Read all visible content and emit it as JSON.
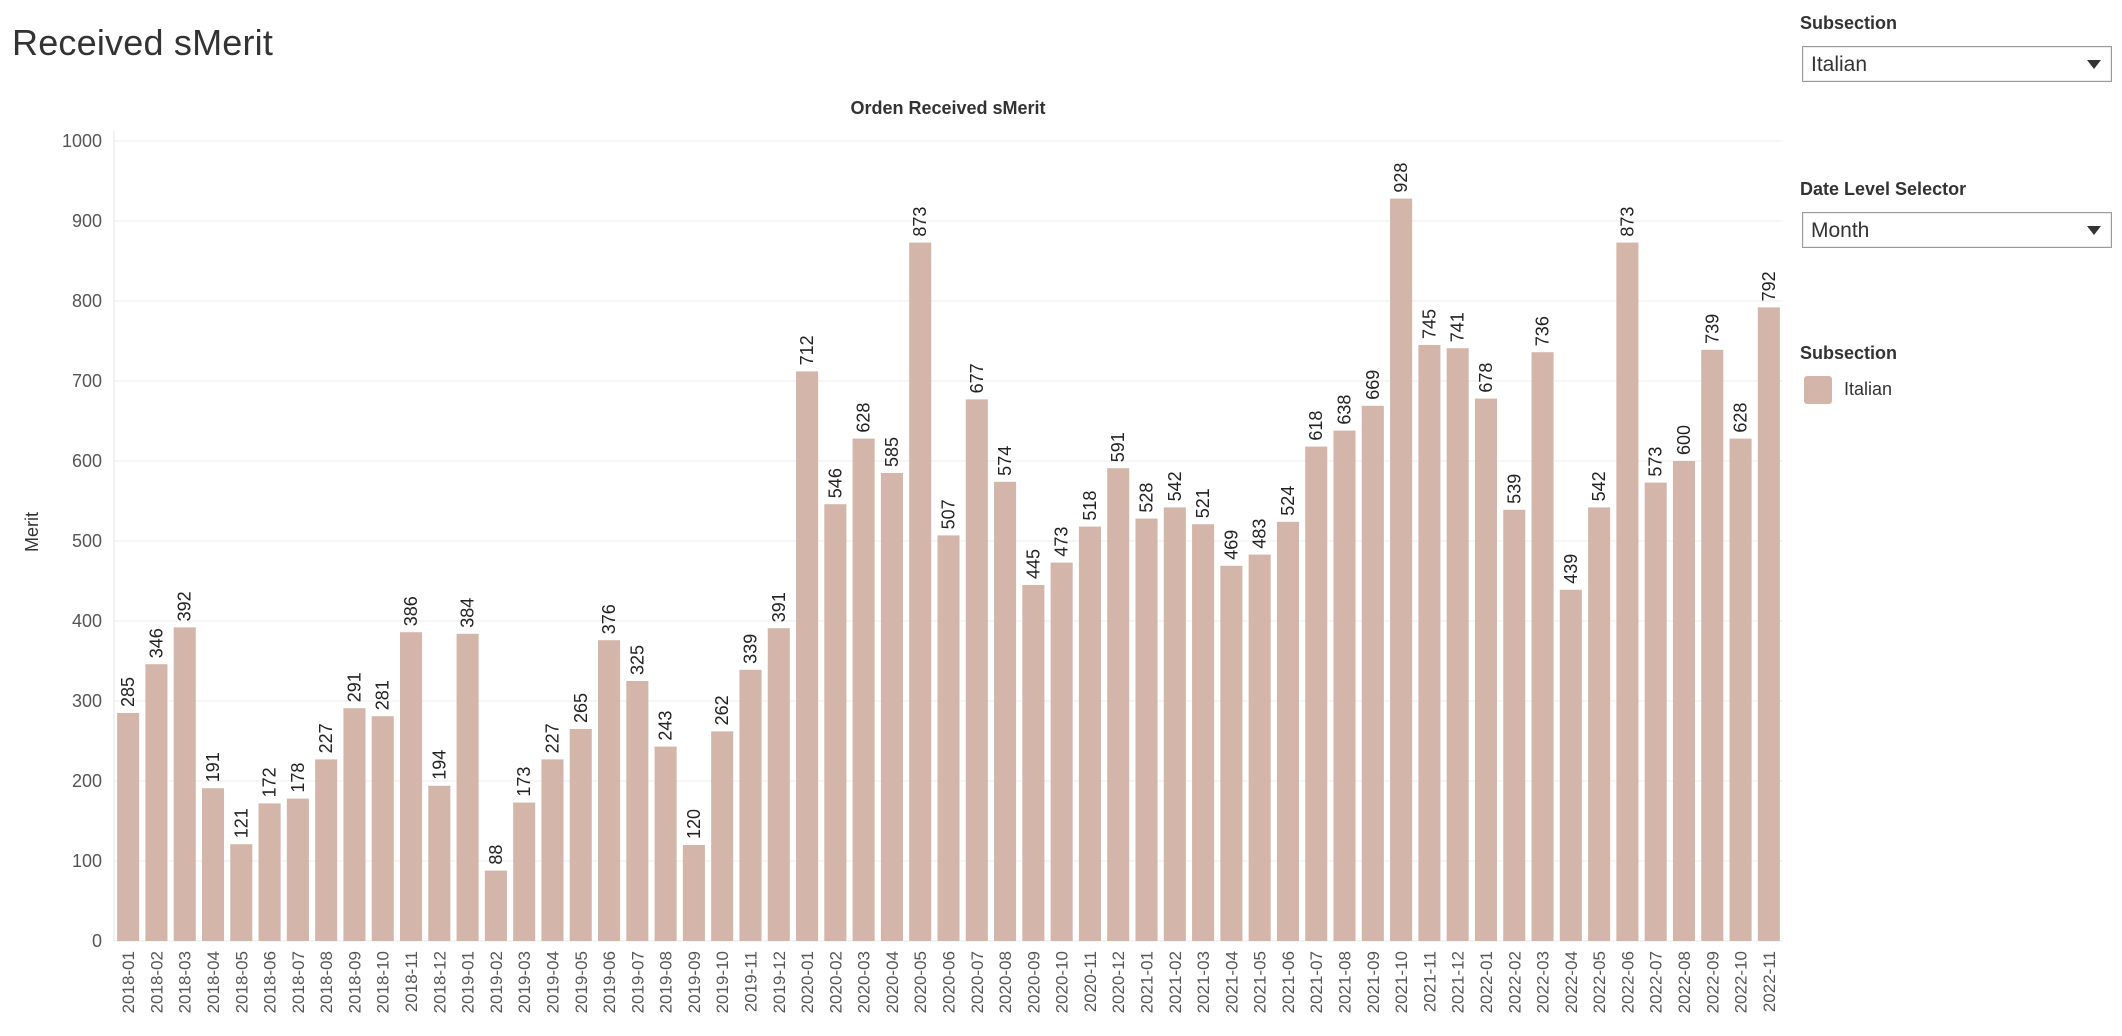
{
  "page": {
    "title": "Received sMerit"
  },
  "filters": {
    "subsection": {
      "label": "Subsection",
      "value": "Italian"
    },
    "date_level": {
      "label": "Date Level Selector",
      "value": "Month"
    }
  },
  "legend": {
    "title": "Subsection",
    "items": [
      {
        "label": "Italian",
        "color": "#d3b5a9"
      }
    ]
  },
  "icons": {
    "dropdown": "chevron-down-icon"
  },
  "chart_data": {
    "type": "bar",
    "title": "Orden Received sMerit",
    "ylabel": "Merit",
    "xlabel": "",
    "ylim": [
      0,
      1000
    ],
    "yticks": [
      0,
      100,
      200,
      300,
      400,
      500,
      600,
      700,
      800,
      900,
      1000
    ],
    "grid": true,
    "legend_position": "right",
    "color": "#d3b5a9",
    "categories": [
      "2018-01",
      "2018-02",
      "2018-03",
      "2018-04",
      "2018-05",
      "2018-06",
      "2018-07",
      "2018-08",
      "2018-09",
      "2018-10",
      "2018-11",
      "2018-12",
      "2019-01",
      "2019-02",
      "2019-03",
      "2019-04",
      "2019-05",
      "2019-06",
      "2019-07",
      "2019-08",
      "2019-09",
      "2019-10",
      "2019-11",
      "2019-12",
      "2020-01",
      "2020-02",
      "2020-03",
      "2020-04",
      "2020-05",
      "2020-06",
      "2020-07",
      "2020-08",
      "2020-09",
      "2020-10",
      "2020-11",
      "2020-12",
      "2021-01",
      "2021-02",
      "2021-03",
      "2021-04",
      "2021-05",
      "2021-06",
      "2021-07",
      "2021-08",
      "2021-09",
      "2021-10",
      "2021-11",
      "2021-12",
      "2022-01",
      "2022-02",
      "2022-03",
      "2022-04",
      "2022-05",
      "2022-06",
      "2022-07",
      "2022-08",
      "2022-09",
      "2022-10",
      "2022-11"
    ],
    "series": [
      {
        "name": "Italian",
        "values": [
          285,
          346,
          392,
          191,
          121,
          172,
          178,
          227,
          291,
          281,
          386,
          194,
          384,
          88,
          173,
          227,
          265,
          376,
          325,
          243,
          120,
          262,
          339,
          391,
          712,
          546,
          628,
          585,
          873,
          507,
          677,
          574,
          445,
          473,
          518,
          591,
          528,
          542,
          521,
          469,
          483,
          524,
          618,
          638,
          669,
          928,
          745,
          741,
          678,
          539,
          736,
          439,
          542,
          873,
          573,
          600,
          739,
          628,
          792
        ]
      }
    ]
  }
}
